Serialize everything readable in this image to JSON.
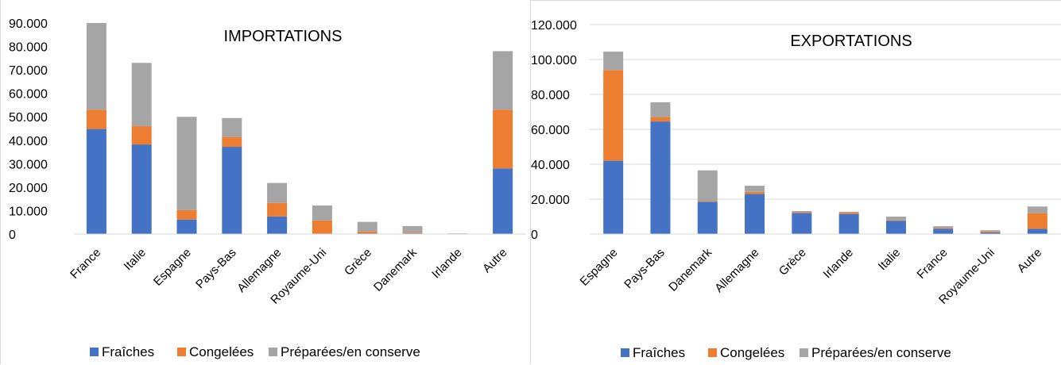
{
  "colors": {
    "fraiches": "#4472c4",
    "congelees": "#ed7d31",
    "preparees": "#a5a5a5",
    "grid": "#d9d9d9"
  },
  "chart_data": [
    {
      "type": "bar",
      "stacked": true,
      "title": "IMPORTATIONS",
      "categories": [
        "France",
        "Italie",
        "Espagne",
        "Pays-Bas",
        "Allemagne",
        "Royaume-Uni",
        "Grèce",
        "Danemark",
        "Irlande",
        "Autre"
      ],
      "series": [
        {
          "name": "Fraîches",
          "color": "#4472c4",
          "values": [
            44800,
            38200,
            6200,
            37200,
            7500,
            200,
            300,
            300,
            0,
            28000
          ]
        },
        {
          "name": "Congelées",
          "color": "#ed7d31",
          "values": [
            8200,
            7800,
            4000,
            4200,
            5800,
            5600,
            800,
            300,
            0,
            25000
          ]
        },
        {
          "name": "Préparées/en conserve",
          "color": "#a5a5a5",
          "values": [
            37000,
            27000,
            39800,
            8100,
            8500,
            6400,
            4100,
            2800,
            300,
            25000
          ]
        }
      ],
      "ylim": [
        0,
        90000
      ],
      "yticks": [
        0,
        10000,
        20000,
        30000,
        40000,
        50000,
        60000,
        70000,
        80000,
        90000
      ],
      "ytick_labels": [
        "0",
        "10.000",
        "20.000",
        "30.000",
        "40.000",
        "50.000",
        "60.000",
        "70.000",
        "80.000",
        "90.000"
      ],
      "legend": "bottom",
      "grid": false
    },
    {
      "type": "bar",
      "stacked": true,
      "title": "EXPORTATIONS",
      "categories": [
        "Espagne",
        "Pays-Bas",
        "Danemark",
        "Allemagne",
        "Grèce",
        "Irlande",
        "Italie",
        "France",
        "Royaume-Uni",
        "Autre"
      ],
      "series": [
        {
          "name": "Fraîches",
          "color": "#4472c4",
          "values": [
            42000,
            64500,
            18500,
            23000,
            12000,
            11500,
            7500,
            3000,
            1000,
            3000
          ]
        },
        {
          "name": "Congelées",
          "color": "#ed7d31",
          "values": [
            52000,
            2500,
            500,
            1200,
            500,
            800,
            300,
            400,
            700,
            9000
          ]
        },
        {
          "name": "Préparées/en conserve",
          "color": "#a5a5a5",
          "values": [
            10500,
            8500,
            17500,
            3500,
            700,
            500,
            2200,
            1100,
            500,
            3800
          ]
        }
      ],
      "ylim": [
        0,
        120000
      ],
      "yticks": [
        0,
        20000,
        40000,
        60000,
        80000,
        100000,
        120000
      ],
      "ytick_labels": [
        "0",
        "20.000",
        "40.000",
        "60.000",
        "80.000",
        "100.000",
        "120.000"
      ],
      "legend": "bottom",
      "grid": true
    }
  ]
}
